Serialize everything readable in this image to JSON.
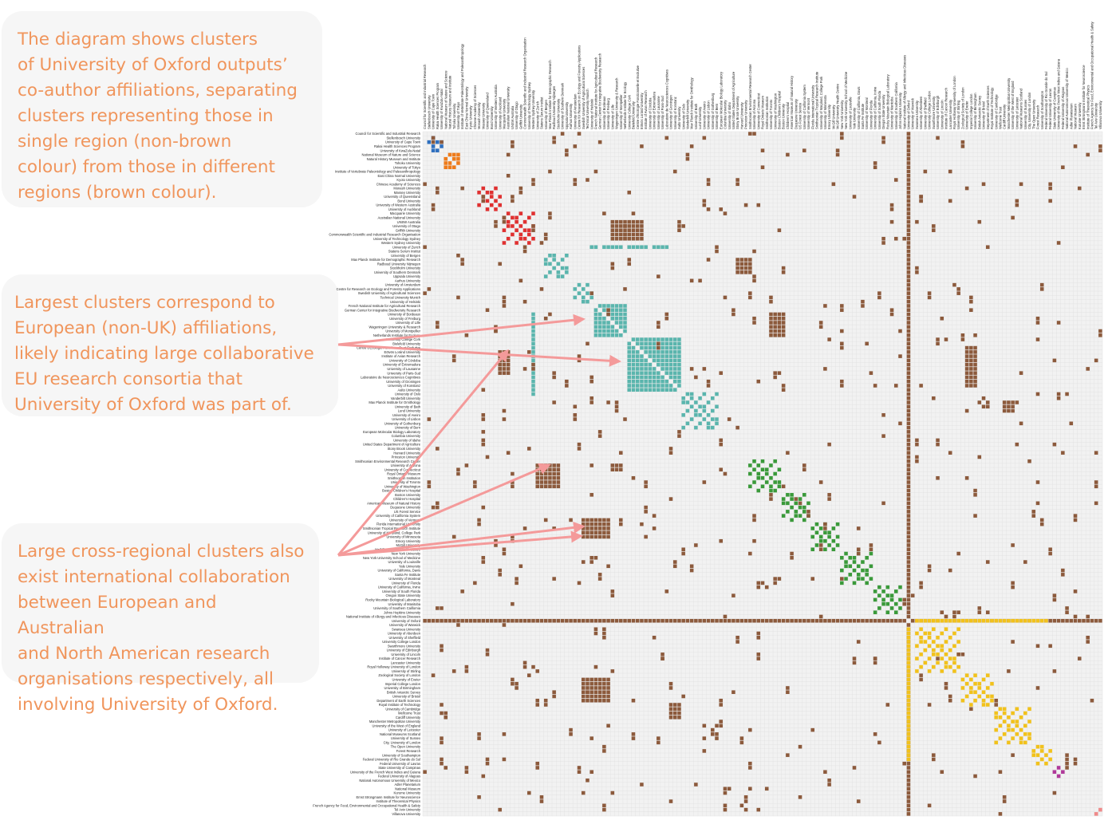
{
  "callouts": {
    "top": "The diagram shows clusters\nof University of Oxford outputs’\nco-author affiliations, separating\nclusters representing those in\nsingle region (non-brown\ncolour) from those in different\nregions  (brown colour).",
    "middle": "Largest clusters correspond to\nEuropean (non-UK) affiliations,\nlikely indicating large collaborative\nEU research consortia that\nUniversity of Oxford was part of.",
    "bottom": "Large cross-regional clusters also\nexist international collaboration\nbetween European and Australian\nand North American research\norganisations respectively, all\ninvolving University of Oxford."
  },
  "colors": {
    "callout_text": "#f0955c",
    "callout_bg": "#f6f6f6",
    "arrow": "#f49a9a",
    "grid_bg": "#f2f2f2",
    "grid_line": "#e0e0e0",
    "cross_region": "#8c5a3c",
    "region_africa": "#2e6fbf",
    "region_asia": "#ef7b1a",
    "region_oceania": "#e03030",
    "region_europe": "#5ab5ad",
    "region_north_america": "#3a9a3a",
    "region_uk": "#f2c21b",
    "region_south_america": "#b03a9a",
    "region_other": "#f08a8a"
  },
  "affiliations": [
    "Council for Scientific and Industrial Research",
    "Stellenbosch University",
    "University of Cape Town",
    "Rakai Health Sciences Program",
    "University of KwaZulu-Natal",
    "National Museum of Nature and Science",
    "Natural History Museum and Institute",
    "Tohoku University",
    "University of Tokyo",
    "Institute of Vertebrate Paleontology and Paleoanthropology",
    "East China Normal University",
    "Kyoto University",
    "Chinese Academy of Sciences",
    "Monash University",
    "Massey University",
    "University of Queensland",
    "Bond University",
    "University of Western Australia",
    "University of Auckland",
    "Macquarie University",
    "Australian National University",
    "UNSW Australia",
    "University of Otago",
    "Griffith University",
    "Commonwealth Scientific and Industrial Research Organisation",
    "University of Technology Sydney",
    "Western Sydney University",
    "University of Zurich",
    "Statens Serum Institut",
    "University of Bergen",
    "Max Planck Institute for Demographic Research",
    "Radboud University Nijmegen",
    "Stockholm University",
    "University of Southern Denmark",
    "Uppsala University",
    "Aarhus University",
    "University of Amsterdam",
    "Centre for Research on Ecology and Forestry Applications",
    "Swedish University of Agricultural Sciences",
    "Technical University Munich",
    "University of Helsinki",
    "French National Institute for Agricultural Research",
    "German Center for Integrative Biodiversity Research",
    "University of Bordeaux",
    "University of Freiburg",
    "University of Lille",
    "Wageningen University & Research",
    "University of Montpellier",
    "Netherlands Institute for Ecology",
    "University College Cork",
    "Bielefeld University",
    "Centre d'Ecologie Fonctionnelle et Evolutive",
    "Eötvös Loránd University",
    "Institute of Avian Research",
    "University of Córdoba",
    "University of Extremadura",
    "University of Lausanne",
    "University of Paris-Sud",
    "Laboratoire de Neurosciences Cognitives",
    "University of Groningen",
    "University of Konstanz",
    "Aalto University",
    "University of Oslo",
    "Vanderbilt University",
    "Max Planck Institute for Ornithology",
    "University of Bath",
    "Lund University",
    "University of Aveiro",
    "University of Lisbon",
    "University of Gothenburg",
    "University of Bern",
    "European Molecular Biology Laboratory",
    "Columbia University",
    "University of Idaho",
    "United States Department of Agriculture",
    "Stony Brook University",
    "Harvard University",
    "Princeton University",
    "Smithsonian Environmental Research Center",
    "University of Arizona",
    "University of Connecticut",
    "Royal Ontario Museum",
    "Smithsonian Institution",
    "University of Toronto",
    "University of Washington",
    "Boston Children's Hospital",
    "Boston University",
    "Children's Hospital",
    "American Museum of Natural History",
    "Duquesne University",
    "US Forest Service",
    "University of California System",
    "University of Vermont",
    "Florida International University",
    "Smithsonian Tropical Research Institute",
    "University of Maryland, College Park",
    "University of Minnesota",
    "Emory University",
    "McGill University",
    "McGill University Health Centre",
    "New York University",
    "New York University School of Medicine",
    "University of Louisville",
    "Yale University",
    "University of California, Davis",
    "Santa Fe Institute",
    "University of Montreal",
    "University of Florida",
    "University of California, Irvine",
    "University of South Florida",
    "Oregon State University",
    "Rocky Mountain Biological Laboratory",
    "University of Manitoba",
    "University of Southern California",
    "Johns Hopkins University",
    "National Institute of Allergy and Infectious Diseases",
    "University of Oxford",
    "University of Warwick",
    "Swansea University",
    "University of Aberdeen",
    "University of Sheffield",
    "University College London",
    "Swarthmore University",
    "University of Edinburgh",
    "University of Lincoln",
    "Institute of Cancer Research",
    "Lancaster University",
    "Royal Holloway University of London",
    "University of Stirling",
    "Zoological Society of London",
    "University of Exeter",
    "Imperial College London",
    "University of Birmingham",
    "British Antarctic Survey",
    "University of Bristol",
    "Department of Earth Sciences",
    "Royal Institute of Technology",
    "University of Cambridge",
    "Wellcome Trust",
    "Cardiff University",
    "Manchester Metropolitan University",
    "University of the West of England",
    "University of Leicester",
    "National Museums Scotland",
    "University of Sussex",
    "City, University of London",
    "The Open University",
    "Forest Research",
    "University of Southampton",
    "Federal University of Rio Grande do Sul",
    "Federal University of Lavras",
    "State University of Campinas",
    "University of the French West Indies and Guiana",
    "Federal University of Alagoas",
    "National Autonomous University of Mexico",
    "Adler Planetarium",
    "National Museum",
    "Kurume University",
    "Ernst Strüngmann Institute for Neuroscience",
    "Institute of Theoretical Physics",
    "French Agency for Food, Environmental and Occupational Health & Safety",
    "Tel Aviv University",
    "Villanova University"
  ],
  "oxford_label": "University of Oxford"
}
